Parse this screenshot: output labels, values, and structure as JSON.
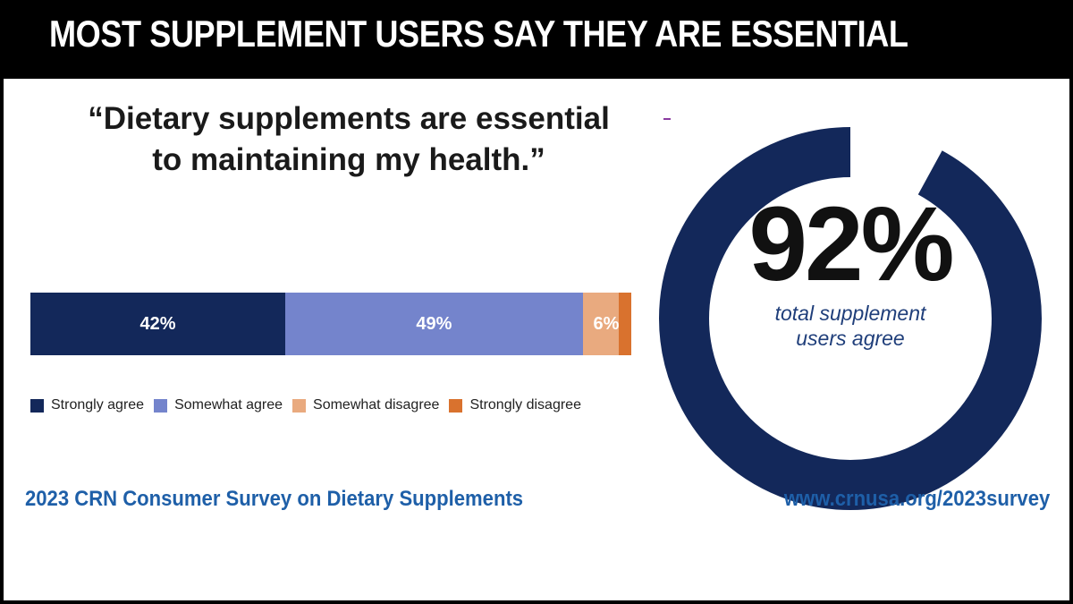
{
  "header": {
    "title": "MOST SUPPLEMENT USERS SAY THEY ARE ESSENTIAL"
  },
  "quote": {
    "line1": "“Dietary supplements are essential",
    "line2": "to maintaining my health.”"
  },
  "chart_data": {
    "type": "bar",
    "orientation": "horizontal-stacked",
    "categories": [
      "Dietary supplements are essential to maintaining my health."
    ],
    "series": [
      {
        "name": "Strongly agree",
        "values": [
          42
        ],
        "label": "42%",
        "color": "#13285a"
      },
      {
        "name": "Somewhat agree",
        "values": [
          49
        ],
        "label": "49%",
        "color": "#7484cc"
      },
      {
        "name": "Somewhat disagree",
        "values": [
          6
        ],
        "label": "6%",
        "color": "#e9aa7f"
      },
      {
        "name": "Strongly disagree",
        "values": [
          2
        ],
        "label": "",
        "color": "#d9722e"
      }
    ],
    "legend_position": "bottom"
  },
  "highlight": {
    "value": 92,
    "value_label": "92%",
    "caption_line1": "total supplement",
    "caption_line2": "users agree",
    "ring_color": "#13285a",
    "ring_fill_fraction": 0.92
  },
  "footer": {
    "left": "2023 CRN Consumer Survey on Dietary Supplements",
    "right": "www.crnusa.org/2023survey",
    "color": "#1e5fa8"
  }
}
